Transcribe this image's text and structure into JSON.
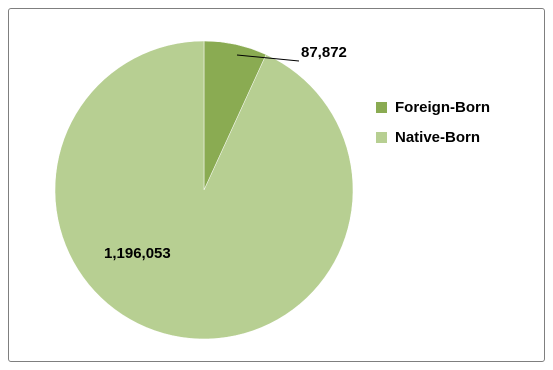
{
  "chart_data": {
    "type": "pie",
    "title": "",
    "slices": [
      {
        "name": "Foreign-Born",
        "value": 87872,
        "label": "87,872",
        "color": "#8aab52"
      },
      {
        "name": "Native-Born",
        "value": 1196053,
        "label": "1,196,053",
        "color": "#b7cf92"
      }
    ],
    "legend_position": "right",
    "start_angle": "12 o'clock",
    "direction": "clockwise"
  }
}
